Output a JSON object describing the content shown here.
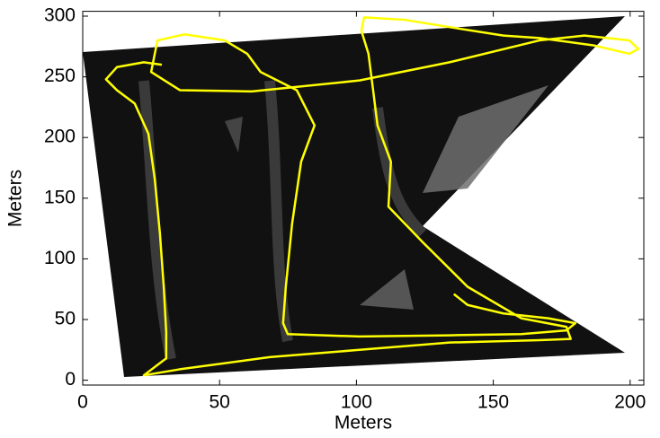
{
  "chart_data": {
    "type": "line",
    "x_label": "Meters",
    "y_label": "Meters",
    "x": [
      135.6,
      140.6,
      153.7,
      170.1,
      180,
      176.7,
      160.3,
      134,
      101.1,
      74.9,
      73.2,
      74.2,
      76.5,
      79.8,
      84.7,
      78.2,
      65,
      60.1,
      51.9,
      37.1,
      27.3,
      25,
      35.5,
      61.7,
      101.1,
      134,
      166.8,
      183.3,
      199.7,
      203,
      199.7,
      186.5,
      166.8,
      153.7,
      134,
      117.6,
      102.8,
      101.8,
      104.4,
      106.1,
      107.7,
      112.6,
      111.7,
      124.1,
      140.6,
      160.3,
      176.7,
      178.3,
      166.8,
      134,
      101.1,
      68.3,
      35.5,
      22.3,
      30.5,
      30.5,
      29.6,
      28.2,
      26.3,
      24,
      19,
      12.5,
      8.5,
      12.5,
      22.3,
      28.9
    ],
    "values": [
      71,
      62,
      55,
      51,
      47,
      41,
      38,
      37,
      36,
      38,
      47,
      77,
      129,
      180,
      210,
      239,
      254,
      269,
      280,
      285,
      280,
      254,
      239,
      238,
      247,
      262,
      280,
      284,
      280,
      273,
      269,
      276,
      282,
      284,
      291,
      297,
      299,
      288,
      269,
      239,
      210,
      180,
      143,
      114,
      77,
      51,
      44,
      34,
      33,
      31,
      25,
      19,
      9,
      4,
      18,
      40,
      77,
      121,
      166,
      203,
      228,
      239,
      248,
      258,
      262,
      260
    ],
    "color": "#ffff00",
    "xlim": [
      0,
      205
    ],
    "ylim": [
      -4,
      304
    ],
    "xticks": [
      0,
      50,
      100,
      150,
      200
    ],
    "yticks": [
      0,
      50,
      100,
      150,
      200,
      250,
      300
    ],
    "grid": false
  }
}
